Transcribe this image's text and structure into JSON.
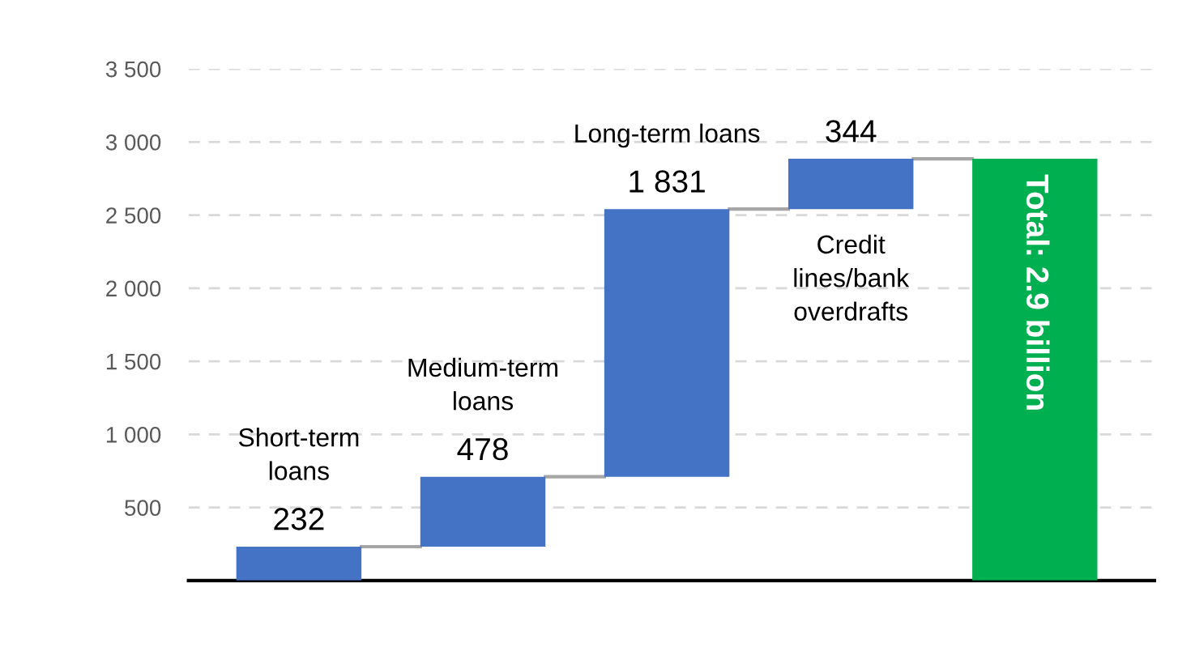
{
  "chart_data": {
    "type": "bar",
    "categories": [
      "Short-term loans",
      "Medium-term loans",
      "Long-term loans",
      "Credit lines/bank overdrafts",
      "Total: 2.9 billion"
    ],
    "values": [
      232,
      478,
      1831,
      344,
      2885
    ],
    "base": [
      0,
      232,
      710,
      2541,
      0
    ],
    "colors": [
      "#4472c4",
      "#4472c4",
      "#4472c4",
      "#4472c4",
      "#00b050"
    ],
    "value_labels": [
      "232",
      "478",
      "1 831",
      "344",
      null
    ],
    "ylim": [
      0,
      3500
    ],
    "yticks": [
      {
        "value": 500,
        "label": "500"
      },
      {
        "value": 1000,
        "label": "1 000"
      },
      {
        "value": 1500,
        "label": "1 500"
      },
      {
        "value": 2000,
        "label": "2 000"
      },
      {
        "value": 2500,
        "label": "2 500"
      },
      {
        "value": 3000,
        "label": "3 000"
      },
      {
        "value": 3500,
        "label": "3 500"
      }
    ],
    "grid": "y"
  }
}
